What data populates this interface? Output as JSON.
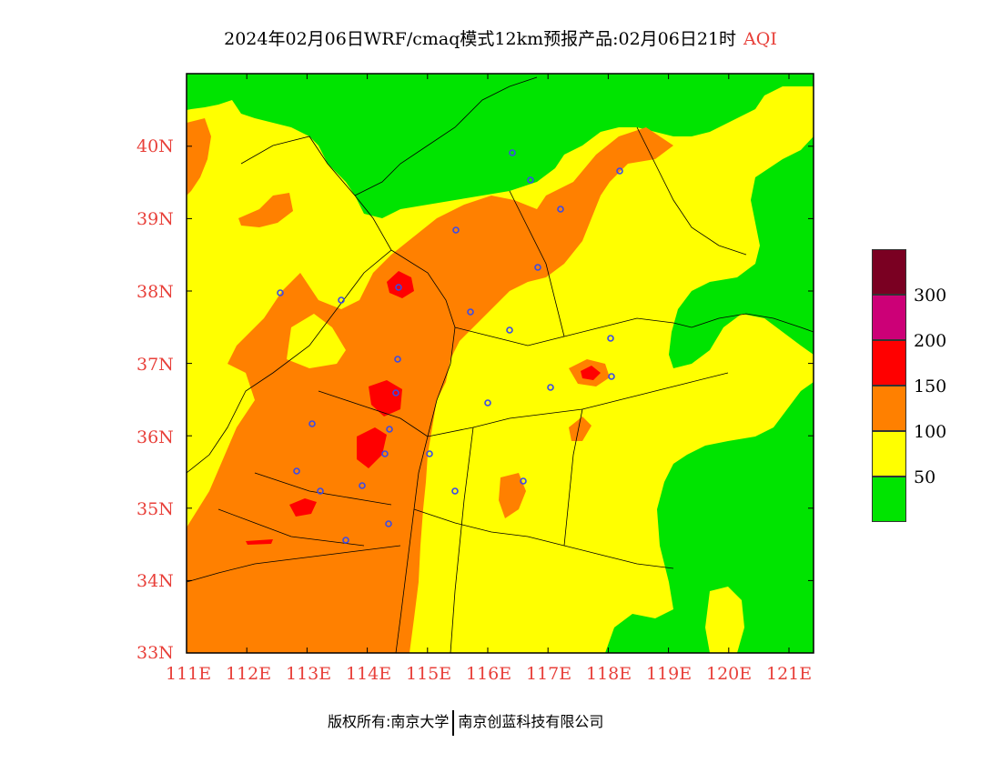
{
  "title": {
    "main": "2024年02月06日WRF/cmaq模式12km预报产品:02月06日21时",
    "variable": "AQI"
  },
  "lat_labels": [
    "40N",
    "39N",
    "38N",
    "37N",
    "36N",
    "35N",
    "34N",
    "33N"
  ],
  "lon_labels": [
    "111E",
    "112E",
    "113E",
    "114E",
    "115E",
    "116E",
    "117E",
    "118E",
    "119E",
    "120E",
    "121E"
  ],
  "legend": {
    "labels": [
      "300",
      "200",
      "150",
      "100",
      "50"
    ],
    "colors": [
      "#7a0022",
      "#cc0077",
      "#ff0000",
      "#ff8000",
      "#ffff00",
      "#00e400"
    ]
  },
  "footer": {
    "left": "版权所有:南京大学",
    "right": "南京创蓝科技有限公司"
  },
  "map": {
    "lon_range": [
      111,
      121.4
    ],
    "lat_range": [
      33,
      41
    ],
    "zones": {
      "good": "#00e400",
      "moderate": "#ffff00",
      "unhealthy_sensitive": "#ff8000",
      "unhealthy": "#ff0000"
    }
  }
}
